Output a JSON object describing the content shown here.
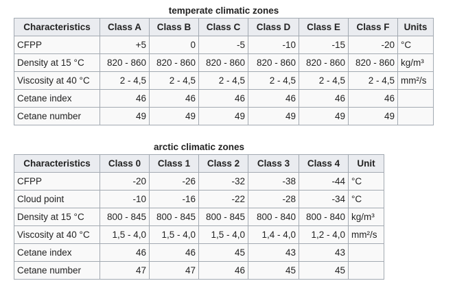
{
  "temperate": {
    "caption": "temperate climatic zones",
    "headers": [
      "Characteristics",
      "Class A",
      "Class B",
      "Class C",
      "Class D",
      "Class E",
      "Class F",
      "Units"
    ],
    "rows": [
      [
        "CFPP",
        "+5",
        "0",
        "-5",
        "-10",
        "-15",
        "-20",
        "°C"
      ],
      [
        "Density at 15 °C",
        "820 - 860",
        "820 - 860",
        "820 - 860",
        "820 - 860",
        "820 - 860",
        "820 - 860",
        "kg/m³"
      ],
      [
        "Viscosity at 40 °C",
        "2 - 4,5",
        "2 - 4,5",
        "2 - 4,5",
        "2 - 4,5",
        "2 - 4,5",
        "2 - 4,5",
        "mm²/s"
      ],
      [
        "Cetane index",
        "46",
        "46",
        "46",
        "46",
        "46",
        "46",
        ""
      ],
      [
        "Cetane number",
        "49",
        "49",
        "49",
        "49",
        "49",
        "49",
        ""
      ]
    ]
  },
  "arctic": {
    "caption": "arctic climatic zones",
    "headers": [
      "Characteristics",
      "Class 0",
      "Class 1",
      "Class 2",
      "Class 3",
      "Class 4",
      "Unit"
    ],
    "rows": [
      [
        "CFPP",
        "-20",
        "-26",
        "-32",
        "-38",
        "-44",
        "°C"
      ],
      [
        "Cloud point",
        "-10",
        "-16",
        "-22",
        "-28",
        "-34",
        "°C"
      ],
      [
        "Density at 15 °C",
        "800 - 845",
        "800 - 845",
        "800 - 845",
        "800 - 840",
        "800 - 840",
        "kg/m³"
      ],
      [
        "Viscosity at 40 °C",
        "1,5 - 4,0",
        "1,5 - 4,0",
        "1,5 - 4,0",
        "1,4 - 4,0",
        "1,2 - 4,0",
        "mm²/s"
      ],
      [
        "Cetane index",
        "46",
        "46",
        "45",
        "43",
        "43",
        ""
      ],
      [
        "Cetane number",
        "47",
        "47",
        "46",
        "45",
        "45",
        ""
      ]
    ]
  }
}
